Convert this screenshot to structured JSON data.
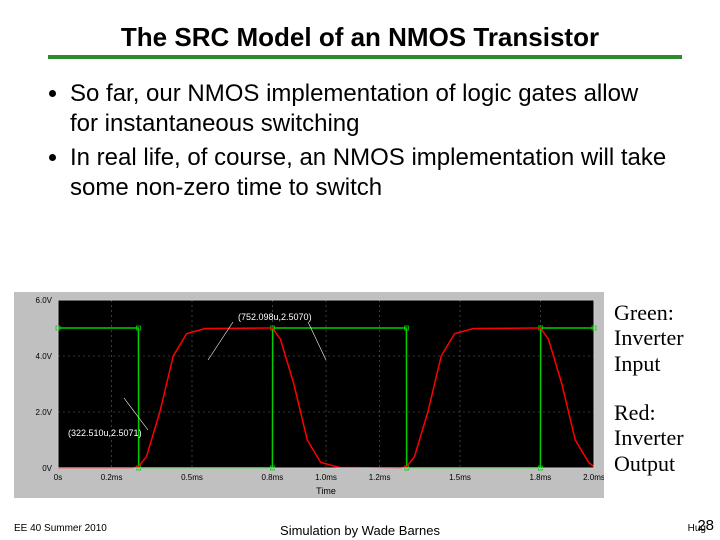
{
  "title": "The SRC Model of an NMOS Transistor",
  "title_underline_color": "#2d8a2d",
  "bullets": [
    "So far, our NMOS implementation of logic gates allow for instantaneous switching",
    "In real life, of course, an NMOS implementation will take some non-zero time to switch"
  ],
  "legend_green": {
    "line1": "Green:",
    "line2": "Inverter",
    "line3": "Input"
  },
  "legend_red": {
    "line1": "Red:",
    "line2": "Inverter",
    "line3": "Output"
  },
  "footer": {
    "left": "EE 40 Summer 2010",
    "center": "Simulation by Wade Barnes",
    "right_name": "Hug",
    "slide_num": "28"
  },
  "chart": {
    "type": "line",
    "background_color": "#c0c0c0",
    "plot_background": "#000000",
    "grid_color": "#666666",
    "axis_color": "#cccccc",
    "text_color": "#ffffff",
    "x_label": "Time",
    "y_labels": [
      "0V",
      "2.0V",
      "4.0V",
      "6.0V"
    ],
    "x_labels": [
      "0s",
      "0.2ms",
      "0.5ms",
      "0.8ms",
      "1.0ms",
      "1.2ms",
      "1.5ms",
      "1.8ms",
      "2.0ms"
    ],
    "ylim": [
      0,
      6
    ],
    "xlim": [
      0,
      2.0
    ],
    "cursor_labels": [
      "(752.098u,2.5070)",
      "(322.510u,2.5071)"
    ],
    "series": [
      {
        "name": "input",
        "color": "#00d000",
        "line_width": 1.5,
        "data": [
          [
            0.0,
            5
          ],
          [
            0.3,
            5
          ],
          [
            0.301,
            0
          ],
          [
            0.8,
            0
          ],
          [
            0.801,
            5
          ],
          [
            1.3,
            5
          ],
          [
            1.301,
            0
          ],
          [
            1.8,
            0
          ],
          [
            1.801,
            5
          ],
          [
            2.0,
            5
          ]
        ]
      },
      {
        "name": "output",
        "color": "#ff0000",
        "line_width": 1.5,
        "data": [
          [
            0.0,
            0
          ],
          [
            0.28,
            0
          ],
          [
            0.3,
            0.05
          ],
          [
            0.33,
            0.4
          ],
          [
            0.38,
            2.0
          ],
          [
            0.43,
            4.0
          ],
          [
            0.48,
            4.8
          ],
          [
            0.55,
            4.98
          ],
          [
            0.78,
            5.0
          ],
          [
            0.8,
            5.0
          ],
          [
            0.83,
            4.6
          ],
          [
            0.88,
            3.0
          ],
          [
            0.93,
            1.0
          ],
          [
            0.98,
            0.2
          ],
          [
            1.05,
            0.02
          ],
          [
            1.28,
            0.0
          ],
          [
            1.3,
            0.05
          ],
          [
            1.33,
            0.4
          ],
          [
            1.38,
            2.0
          ],
          [
            1.43,
            4.0
          ],
          [
            1.48,
            4.8
          ],
          [
            1.55,
            4.98
          ],
          [
            1.78,
            5.0
          ],
          [
            1.8,
            5.0
          ],
          [
            1.83,
            4.6
          ],
          [
            1.88,
            3.0
          ],
          [
            1.93,
            1.0
          ],
          [
            1.98,
            0.2
          ],
          [
            2.0,
            0.05
          ]
        ]
      }
    ]
  }
}
